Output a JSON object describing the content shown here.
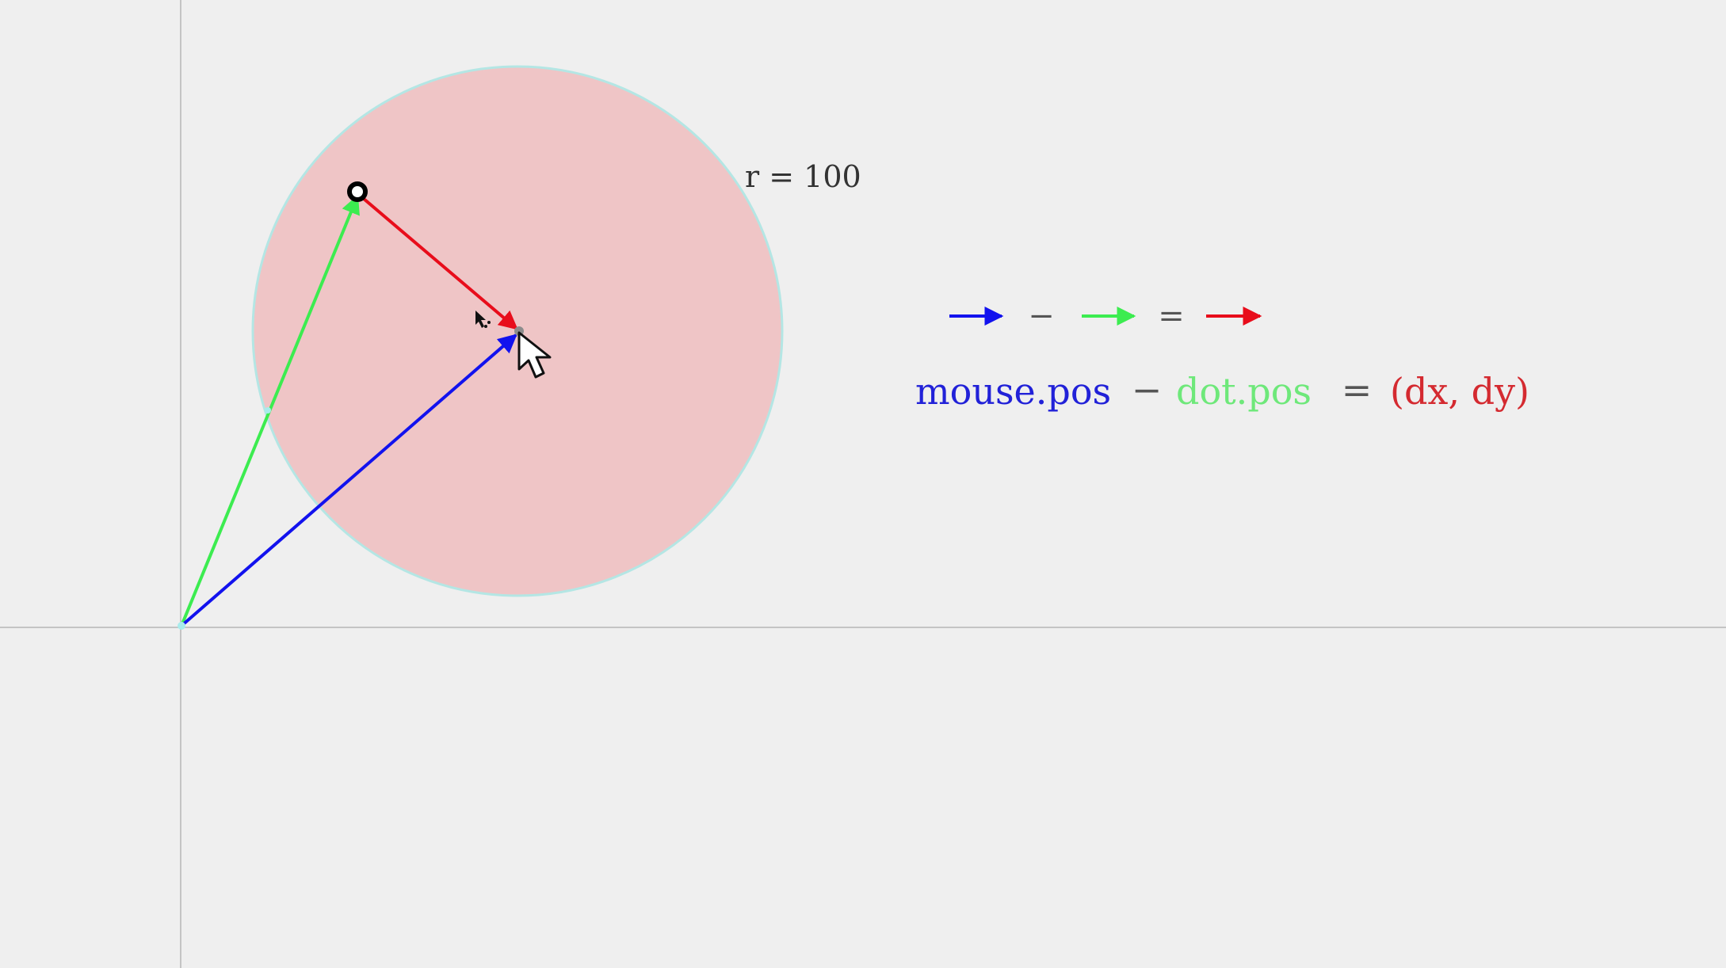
{
  "colors": {
    "background": "#efefef",
    "axis": "#c4c4c4",
    "circle_fill": "#efc5c6",
    "circle_stroke": "#b4e6e4",
    "mouse_vector": "#1212ee",
    "dot_vector": "#3cec50",
    "diff_vector": "#e80d1b",
    "text_dark": "#333333"
  },
  "circle": {
    "radius_label": "r = 100"
  },
  "legend": {
    "minus_symbol": "−",
    "equals_symbol": "=",
    "mouse_pos": "mouse.pos",
    "minus_text": "−",
    "dot_pos": "dot.pos",
    "equals_text": "=",
    "result": "(dx, dy)"
  },
  "icons": {
    "cursor": "arrow-cursor-icon",
    "dot": "ring-dot-icon"
  }
}
